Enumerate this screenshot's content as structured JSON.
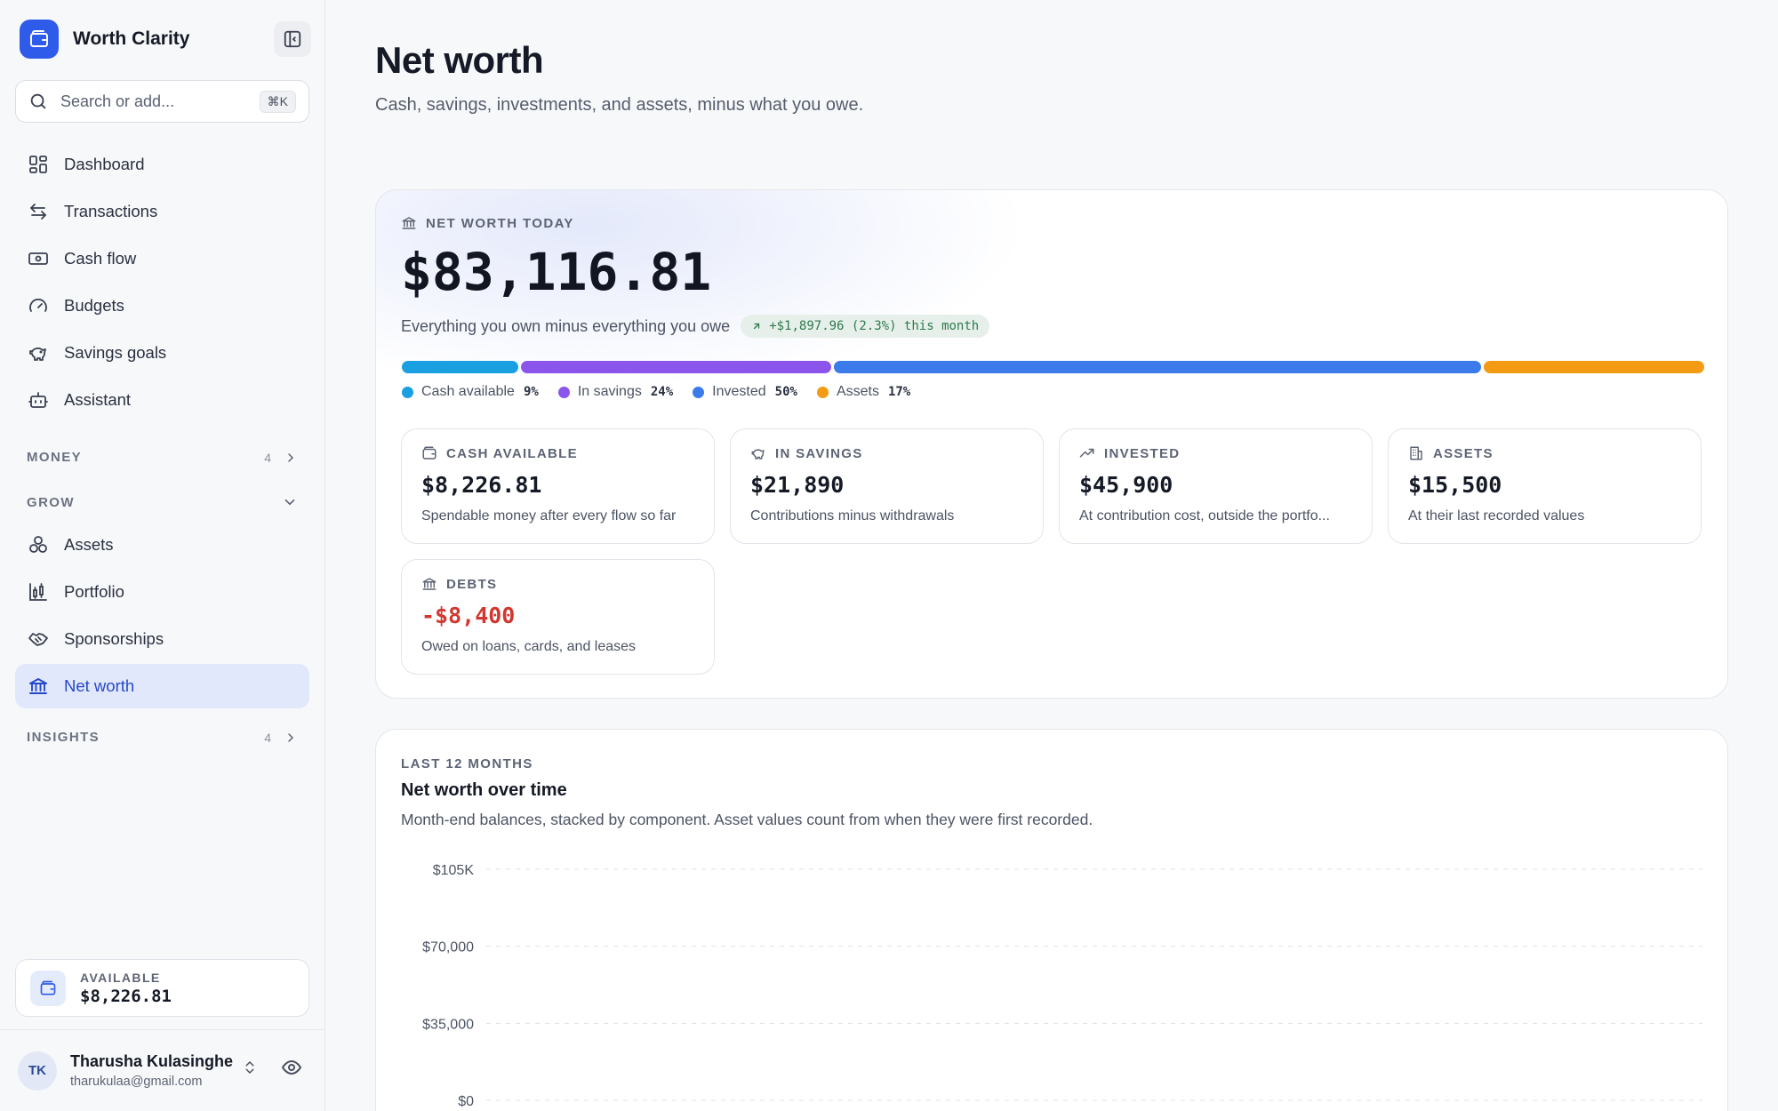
{
  "app": {
    "name": "Worth Clarity"
  },
  "sidebar": {
    "search_placeholder": "Search or add...",
    "search_shortcut": "⌘K",
    "nav": [
      {
        "label": "Dashboard",
        "icon": "dashboard-icon"
      },
      {
        "label": "Transactions",
        "icon": "transactions-icon"
      },
      {
        "label": "Cash flow",
        "icon": "cash-flow-icon"
      },
      {
        "label": "Budgets",
        "icon": "gauge-icon"
      },
      {
        "label": "Savings goals",
        "icon": "piggy-bank-icon"
      },
      {
        "label": "Assistant",
        "icon": "robot-icon"
      }
    ],
    "sections": {
      "money": {
        "label": "MONEY",
        "count": "4"
      },
      "grow": {
        "label": "GROW"
      },
      "insights": {
        "label": "INSIGHTS",
        "count": "4"
      }
    },
    "grow_items": [
      {
        "label": "Assets",
        "icon": "assets-icon"
      },
      {
        "label": "Portfolio",
        "icon": "portfolio-icon"
      },
      {
        "label": "Sponsorships",
        "icon": "handshake-icon"
      },
      {
        "label": "Net worth",
        "icon": "bank-icon",
        "active": true
      }
    ],
    "available": {
      "label": "AVAILABLE",
      "value": "$8,226.81"
    },
    "user": {
      "initials": "TK",
      "name": "Tharusha Kulasinghe",
      "email": "tharukulaa@gmail.com"
    }
  },
  "page": {
    "title": "Net worth",
    "subtitle": "Cash, savings, investments, and assets, minus what you owe."
  },
  "summary": {
    "label": "NET WORTH TODAY",
    "value": "$83,116.81",
    "description": "Everything you own minus everything you owe",
    "delta": "+$1,897.96 (2.3%) this month",
    "allocation": [
      {
        "name": "Cash available",
        "pct": "9%",
        "value": 9,
        "color": "#1a9fe0"
      },
      {
        "name": "In savings",
        "pct": "24%",
        "value": 24,
        "color": "#8b55ec"
      },
      {
        "name": "Invested",
        "pct": "50%",
        "value": 50,
        "color": "#3b7bea"
      },
      {
        "name": "Assets",
        "pct": "17%",
        "value": 17,
        "color": "#f39b12"
      }
    ],
    "stats": [
      {
        "label": "CASH AVAILABLE",
        "value": "$8,226.81",
        "note": "Spendable money after every flow so far",
        "icon": "wallet-icon"
      },
      {
        "label": "IN SAVINGS",
        "value": "$21,890",
        "note": "Contributions minus withdrawals",
        "icon": "piggy-bank-icon"
      },
      {
        "label": "INVESTED",
        "value": "$45,900",
        "note": "At contribution cost, outside the portfo...",
        "icon": "trend-up-icon"
      },
      {
        "label": "ASSETS",
        "value": "$15,500",
        "note": "At their last recorded values",
        "icon": "building-icon"
      },
      {
        "label": "DEBTS",
        "value": "-$8,400",
        "note": "Owed on loans, cards, and leases",
        "icon": "bank-icon",
        "negative": true
      }
    ]
  },
  "chart_section": {
    "eyebrow": "LAST 12 MONTHS",
    "title": "Net worth over time",
    "subtitle": "Month-end balances, stacked by component. Asset values count from when they were first recorded."
  },
  "chart_data": {
    "type": "area",
    "title": "Net worth over time",
    "y_ticks": [
      "$105K",
      "$70,000",
      "$35,000",
      "$0"
    ],
    "y_tick_values": [
      105000,
      70000,
      35000,
      0
    ],
    "ylim": [
      0,
      105000
    ],
    "grid": true
  }
}
